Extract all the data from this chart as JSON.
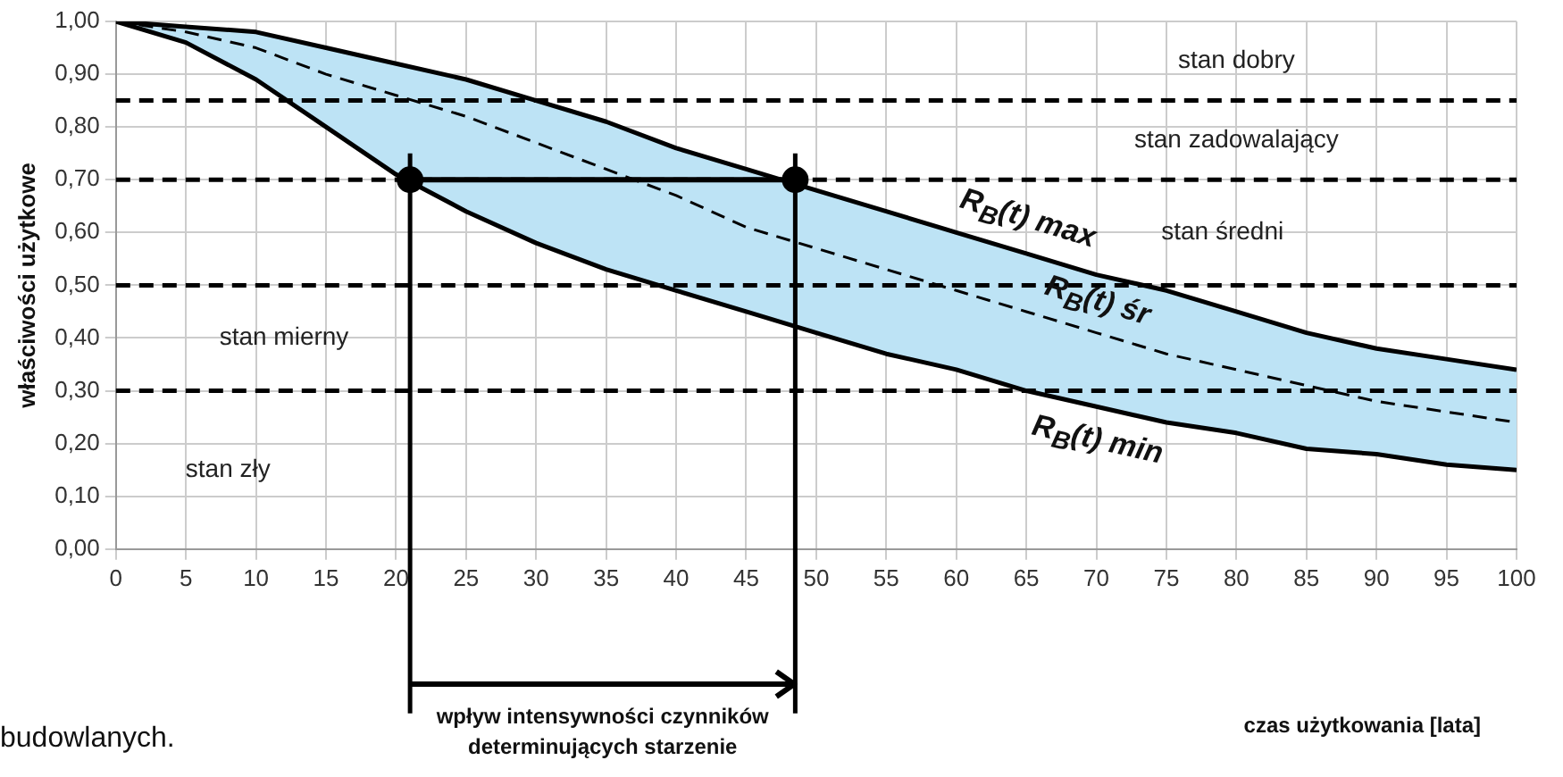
{
  "chart_data": {
    "type": "line",
    "ylabel": "właściwości użytkowe",
    "x": [
      0,
      5,
      10,
      15,
      20,
      25,
      30,
      35,
      40,
      45,
      50,
      55,
      60,
      65,
      70,
      75,
      80,
      85,
      90,
      95,
      100
    ],
    "series": [
      {
        "name": "R$_{B}$(t) max",
        "color": "#000000",
        "line_style": "solid",
        "marker": "none",
        "values": [
          1.0,
          0.99,
          0.98,
          0.95,
          0.92,
          0.89,
          0.85,
          0.81,
          0.76,
          0.72,
          0.68,
          0.64,
          0.6,
          0.56,
          0.52,
          0.49,
          0.45,
          0.41,
          0.38,
          0.36,
          0.34
        ]
      },
      {
        "name": "R$_{B}$(t) śr",
        "color": "#000000",
        "line_style": "dashed",
        "marker": "none",
        "values": [
          1.0,
          0.98,
          0.95,
          0.9,
          0.86,
          0.82,
          0.77,
          0.72,
          0.67,
          0.61,
          0.57,
          0.53,
          0.49,
          0.45,
          0.41,
          0.37,
          0.34,
          0.31,
          0.28,
          0.26,
          0.24
        ],
        "upper": [
          1.0,
          0.99,
          0.98,
          0.95,
          0.92,
          0.89,
          0.85,
          0.81,
          0.76,
          0.72,
          0.68,
          0.64,
          0.6,
          0.56,
          0.52,
          0.49,
          0.45,
          0.41,
          0.38,
          0.36,
          0.34
        ],
        "lower": [
          1.0,
          0.96,
          0.89,
          0.8,
          0.71,
          0.64,
          0.58,
          0.53,
          0.49,
          0.45,
          0.41,
          0.37,
          0.34,
          0.3,
          0.27,
          0.24,
          0.22,
          0.19,
          0.18,
          0.16,
          0.15
        ]
      },
      {
        "name": "R$_{B}$(t) min",
        "color": "#000000",
        "line_style": "solid",
        "marker": "none",
        "values": [
          1.0,
          0.96,
          0.89,
          0.8,
          0.71,
          0.64,
          0.58,
          0.53,
          0.49,
          0.45,
          0.41,
          0.37,
          0.34,
          0.3,
          0.27,
          0.24,
          0.22,
          0.19,
          0.18,
          0.16,
          0.15
        ]
      },
      {
        "color": "#000000",
        "line_style": "solid",
        "marker": "circle",
        "x": [
          21,
          48.5
        ],
        "values": [
          0.7,
          0.7
        ]
      }
    ],
    "xlim": [
      0,
      100
    ],
    "xticks": [
      0,
      5,
      10,
      15,
      20,
      25,
      30,
      35,
      40,
      45,
      50,
      55,
      60,
      65,
      70,
      75,
      80,
      85,
      90,
      95,
      100
    ],
    "ylim": [
      0,
      1
    ],
    "yticks": [
      {
        "value": 0,
        "label": "0,00"
      },
      {
        "value": 0.1,
        "label": "0,10"
      },
      {
        "value": 0.2,
        "label": "0,20"
      },
      {
        "value": 0.3,
        "label": "0,30"
      },
      {
        "value": 0.4,
        "label": "0,40"
      },
      {
        "value": 0.5,
        "label": "0,50"
      },
      {
        "value": 0.6,
        "label": "0,60"
      },
      {
        "value": 0.7,
        "label": "0,70"
      },
      {
        "value": 0.8,
        "label": "0,80"
      },
      {
        "value": 0.9,
        "label": "0,90"
      },
      {
        "value": 1,
        "label": "1,00"
      }
    ],
    "ref_lines": [
      {
        "axis": "y",
        "value": 0.85,
        "line_style": "dashed"
      },
      {
        "axis": "y",
        "value": 0.7,
        "line_style": "dashed"
      },
      {
        "axis": "y",
        "value": 0.5,
        "line_style": "dashed"
      },
      {
        "axis": "y",
        "value": 0.3,
        "line_style": "dashed"
      },
      {
        "axis": "x",
        "value": 21,
        "line_style": "solid"
      },
      {
        "axis": "x",
        "value": 48.5,
        "line_style": "solid"
      }
    ],
    "annotations": [
      "stan dobry",
      "stan zadowalający",
      "stan średni",
      "stan mierny",
      "stan zły",
      "wpływ intensywności czynników determinujących starzenie",
      "czas użytkowania [lata]",
      "budowlanych."
    ],
    "grid": true,
    "legend": false
  }
}
